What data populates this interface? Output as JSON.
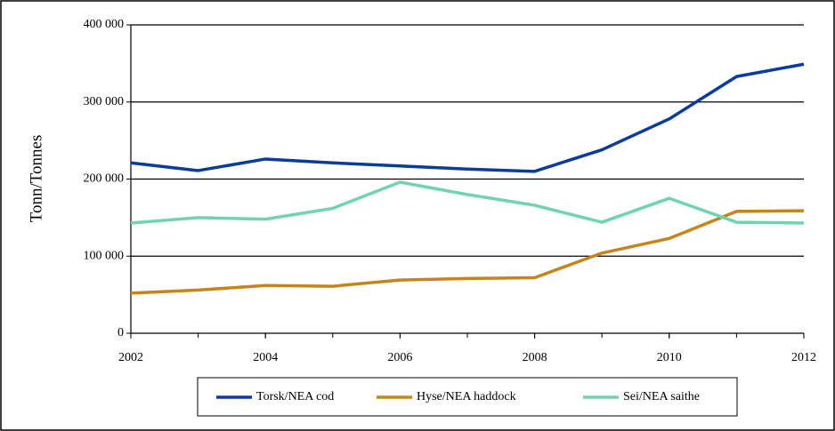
{
  "chart_data": {
    "type": "line",
    "y_label": "Tonn/Tonnes",
    "x": [
      2002,
      2003,
      2004,
      2005,
      2006,
      2007,
      2008,
      2009,
      2010,
      2011,
      2012
    ],
    "series": [
      {
        "name": "Torsk/NEA cod",
        "color": "#0b3b9c",
        "values": [
          221000,
          211000,
          226000,
          221000,
          217000,
          213000,
          210000,
          238000,
          278000,
          333000,
          349000
        ]
      },
      {
        "name": "Hyse/NEA haddock",
        "color": "#c8841c",
        "values": [
          52000,
          56000,
          62000,
          61000,
          69000,
          71000,
          72000,
          104000,
          123000,
          158000,
          159000
        ]
      },
      {
        "name": "Sei/NEA saithe",
        "color": "#6fd3b4",
        "values": [
          143000,
          150000,
          148000,
          162000,
          196000,
          180000,
          166000,
          144000,
          175000,
          144000,
          143000
        ]
      }
    ],
    "xlim": [
      2002,
      2012
    ],
    "xticks": [
      2002,
      2004,
      2006,
      2008,
      2010,
      2012
    ],
    "ylim": [
      0,
      400000
    ],
    "yticks": [
      0,
      {
        "value": 100000,
        "label": "100 000"
      },
      {
        "value": 200000,
        "label": "200 000"
      },
      {
        "value": 300000,
        "label": "300 000"
      },
      {
        "value": 400000,
        "label": "400 000"
      }
    ],
    "grid": true,
    "legend": "bottom"
  }
}
